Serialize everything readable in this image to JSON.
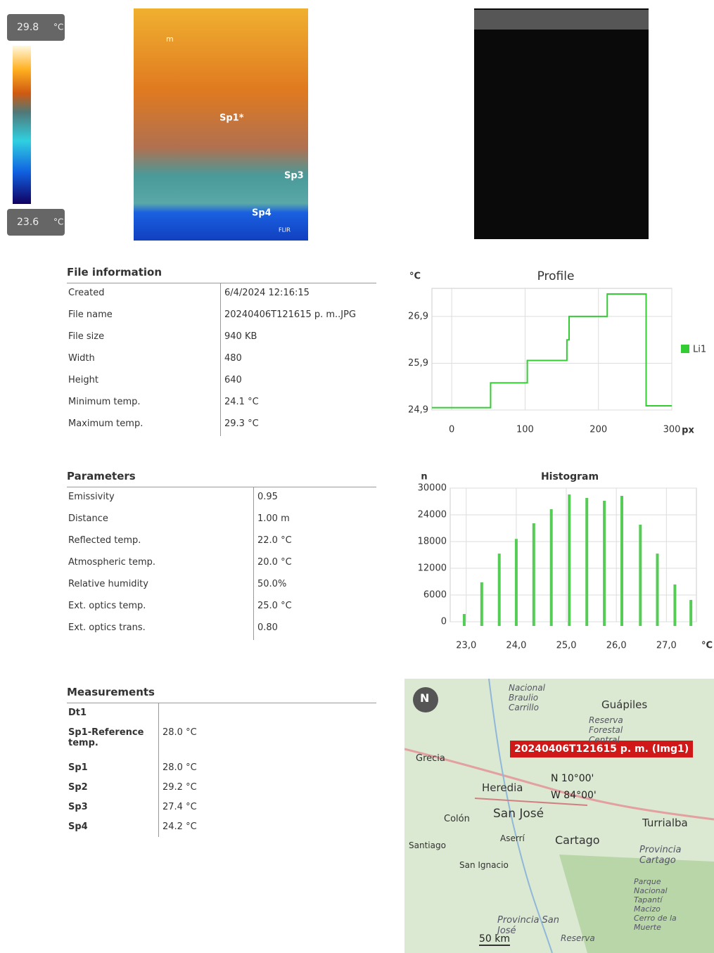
{
  "thermal_image": {
    "max": "29.8",
    "min": "23.6",
    "unit": "°C",
    "spots": [
      "m",
      "Sp1*",
      "Sp3",
      "Sp4"
    ],
    "brand": "FLIR"
  },
  "file_information": {
    "title": "File information",
    "rows": [
      [
        "Created",
        "6/4/2024 12:16:15"
      ],
      [
        "File name",
        "20240406T121615 p. m..JPG"
      ],
      [
        "File size",
        "940 KB"
      ],
      [
        "Width",
        "480"
      ],
      [
        "Height",
        "640"
      ],
      [
        "Minimum temp.",
        "24.1 °C"
      ],
      [
        "Maximum temp.",
        "29.3 °C"
      ]
    ]
  },
  "parameters": {
    "title": "Parameters",
    "rows": [
      [
        "Emissivity",
        "0.95"
      ],
      [
        "Distance",
        "1.00 m"
      ],
      [
        "Reflected temp.",
        "22.0 °C"
      ],
      [
        "Atmospheric temp.",
        "20.0 °C"
      ],
      [
        "Relative humidity",
        "50.0%"
      ],
      [
        "Ext. optics temp.",
        "25.0 °C"
      ],
      [
        "Ext. optics trans.",
        "0.80"
      ]
    ]
  },
  "measurements": {
    "title": "Measurements",
    "rows": [
      [
        "Dt1"
      ],
      [
        "Sp1-Reference temp.",
        "28.0 °C"
      ],
      [
        "Sp1",
        "28.0 °C"
      ],
      [
        "Sp2",
        "29.2 °C"
      ],
      [
        "Sp3",
        "27.4 °C"
      ],
      [
        "Sp4",
        "24.2 °C"
      ]
    ]
  },
  "chart_data": [
    {
      "type": "line",
      "title": "Profile",
      "y_label": "°C",
      "x_label": "px",
      "x": [
        -27,
        53,
        53,
        103,
        103,
        157,
        157,
        160,
        160,
        212,
        212,
        265,
        265,
        300
      ],
      "series": [
        {
          "name": "Li1",
          "color": "#33cc33",
          "values": [
            24.95,
            24.95,
            25.48,
            25.48,
            25.96,
            25.96,
            26.4,
            26.4,
            26.9,
            26.9,
            27.38,
            27.38,
            24.99,
            24.99
          ]
        }
      ],
      "xlim": [
        -27,
        300
      ],
      "ylim": [
        24.9,
        27.5
      ],
      "xticks": [
        0,
        100,
        200,
        300
      ],
      "yticks": [
        {
          "value": 24.9,
          "label": "24,9"
        },
        {
          "value": 25.9,
          "label": "25,9"
        },
        {
          "value": 26.9,
          "label": "26,9"
        }
      ],
      "grid": true,
      "legend": "right"
    },
    {
      "type": "bar",
      "title": "Histogram",
      "y_label": "n",
      "x_label": "°C",
      "color": "#55cc55",
      "x": [
        22.96,
        23.31,
        23.66,
        24.0,
        24.35,
        24.7,
        25.06,
        25.41,
        25.76,
        26.11,
        26.48,
        26.82,
        27.17,
        27.49
      ],
      "values": [
        1740,
        8840,
        15300,
        18600,
        22100,
        25260,
        28580,
        27800,
        27160,
        28260,
        21800,
        15300,
        8370,
        4900
      ],
      "xlim": [
        22.68,
        27.6
      ],
      "ylim": [
        0,
        30000
      ],
      "xticks": [
        {
          "value": 23,
          "label": "23,0"
        },
        {
          "value": 24,
          "label": "24,0"
        },
        {
          "value": 25,
          "label": "25,0"
        },
        {
          "value": 26,
          "label": "26,0"
        },
        {
          "value": 27,
          "label": "27,0"
        }
      ],
      "yticks": [
        0,
        6000,
        12000,
        18000,
        24000,
        30000
      ],
      "grid": true
    }
  ],
  "map": {
    "compass": "N",
    "marker": "20240406T121615 p. m. (Img1)",
    "lat": "N 10°00'",
    "lon": "W 84°00'",
    "scale": "50 km",
    "places": [
      "Nacional Braulio Carrillo",
      "Guápiles",
      "Reserva Forestal Central",
      "Grecia",
      "Heredia",
      "San José",
      "Colón",
      "Turrialba",
      "Aserrí",
      "Cartago",
      "Santiago",
      "San Ignacio",
      "Provincia Cartago",
      "Parque Nacional Tapantí Macizo Cerro de la Muerte",
      "Provincia San José",
      "Reserva"
    ]
  }
}
